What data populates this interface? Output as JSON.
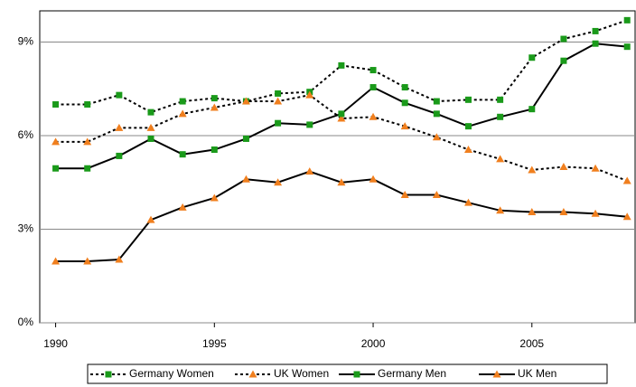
{
  "chart_data": {
    "type": "line",
    "x": [
      1990,
      1991,
      1992,
      1993,
      1994,
      1995,
      1996,
      1997,
      1998,
      1999,
      2000,
      2001,
      2002,
      2003,
      2004,
      2005,
      2006,
      2007,
      2008
    ],
    "xlim": [
      1989.5,
      2008.25
    ],
    "xticks": [
      1990,
      1995,
      2000,
      2005
    ],
    "ylim": [
      0,
      10
    ],
    "yticks": [
      {
        "value": 0,
        "label": "0%"
      },
      {
        "value": 3,
        "label": "3%"
      },
      {
        "value": 6,
        "label": "6%"
      },
      {
        "value": 9,
        "label": "9%"
      }
    ],
    "grid": true,
    "legend": "bottom",
    "series": [
      {
        "name": "Germany Women",
        "color": "#000000",
        "line_style": "dotted",
        "marker": "square",
        "marker_color": "#1a9a1a",
        "values": [
          7.0,
          7.0,
          7.3,
          6.75,
          7.1,
          7.2,
          7.1,
          7.35,
          7.4,
          8.25,
          8.1,
          7.55,
          7.1,
          7.15,
          7.15,
          8.5,
          9.1,
          9.35,
          9.7
        ]
      },
      {
        "name": "UK Women",
        "color": "#000000",
        "line_style": "dotted",
        "marker": "triangle",
        "marker_color": "#f07f1e",
        "values": [
          5.8,
          5.8,
          6.25,
          6.25,
          6.7,
          6.9,
          7.1,
          7.1,
          7.3,
          6.55,
          6.6,
          6.3,
          5.95,
          5.55,
          5.25,
          4.9,
          5.0,
          4.95,
          4.55
        ]
      },
      {
        "name": "Germany Men",
        "color": "#000000",
        "line_style": "solid",
        "marker": "square",
        "marker_color": "#1a9a1a",
        "values": [
          4.95,
          4.95,
          5.35,
          5.9,
          5.4,
          5.55,
          5.9,
          6.4,
          6.35,
          6.7,
          7.55,
          7.05,
          6.7,
          6.3,
          6.6,
          6.85,
          8.4,
          8.95,
          8.85
        ]
      },
      {
        "name": "UK Men",
        "color": "#000000",
        "line_style": "solid",
        "marker": "triangle",
        "marker_color": "#f07f1e",
        "values": [
          1.97,
          1.97,
          2.03,
          3.3,
          3.7,
          4.0,
          4.6,
          4.5,
          4.85,
          4.5,
          4.6,
          4.1,
          4.1,
          3.85,
          3.6,
          3.55,
          3.55,
          3.5,
          3.4
        ]
      }
    ]
  }
}
